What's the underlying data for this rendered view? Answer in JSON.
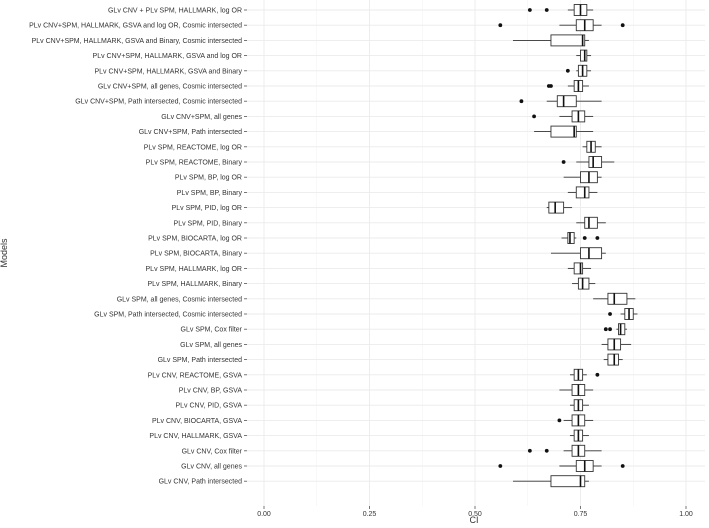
{
  "chart_data": {
    "type": "boxplot",
    "title": "",
    "xlabel": "CI",
    "ylabel": "Models",
    "xlim": [
      0.0,
      1.0
    ],
    "xticks": [
      "0.00",
      "0.25",
      "0.50",
      "0.75",
      "1.00"
    ],
    "xtick_values": [
      0.0,
      0.25,
      0.5,
      0.75,
      1.0
    ],
    "grid": true,
    "models": [
      {
        "label": "GLv CNV + PLv SPM, HALLMARK, log OR",
        "min": 0.72,
        "q1": 0.735,
        "median": 0.75,
        "q3": 0.765,
        "max": 0.78,
        "outliers": [
          0.63,
          0.67
        ]
      },
      {
        "label": "PLv CNV+SPM, HALLMARK, GSVA and log OR, Cosmic intersected",
        "min": 0.7,
        "q1": 0.74,
        "median": 0.76,
        "q3": 0.78,
        "max": 0.8,
        "outliers": [
          0.56,
          0.85
        ]
      },
      {
        "label": "PLv CNV+SPM, HALLMARK, GSVA and Binary, Cosmic intersected",
        "min": 0.59,
        "q1": 0.68,
        "median": 0.755,
        "q3": 0.76,
        "max": 0.77,
        "outliers": []
      },
      {
        "label": "PLv CNV+SPM, HALLMARK, GSVA and log OR",
        "min": 0.74,
        "q1": 0.75,
        "median": 0.76,
        "q3": 0.765,
        "max": 0.775,
        "outliers": []
      },
      {
        "label": "PLv CNV+SPM, HALLMARK, GSVA and Binary",
        "min": 0.74,
        "q1": 0.745,
        "median": 0.755,
        "q3": 0.765,
        "max": 0.775,
        "outliers": [
          0.72
        ]
      },
      {
        "label": "GLv CNV+SPM, all genes, Cosmic intersected",
        "min": 0.72,
        "q1": 0.735,
        "median": 0.745,
        "q3": 0.755,
        "max": 0.77,
        "outliers": [
          0.68,
          0.675
        ]
      },
      {
        "label": "GLv CNV+SPM, Path intersected, Cosmic intersected",
        "min": 0.67,
        "q1": 0.695,
        "median": 0.71,
        "q3": 0.74,
        "max": 0.8,
        "outliers": [
          0.61
        ]
      },
      {
        "label": "GLv CNV+SPM, all genes",
        "min": 0.7,
        "q1": 0.73,
        "median": 0.745,
        "q3": 0.76,
        "max": 0.78,
        "outliers": [
          0.64
        ]
      },
      {
        "label": "GLv CNV+SPM, Path intersected",
        "min": 0.64,
        "q1": 0.68,
        "median": 0.735,
        "q3": 0.74,
        "max": 0.78,
        "outliers": []
      },
      {
        "label": "PLv SPM, REACTOME, log OR",
        "min": 0.755,
        "q1": 0.765,
        "median": 0.775,
        "q3": 0.785,
        "max": 0.8,
        "outliers": []
      },
      {
        "label": "PLv SPM, REACTOME, Binary",
        "min": 0.74,
        "q1": 0.77,
        "median": 0.78,
        "q3": 0.8,
        "max": 0.83,
        "outliers": [
          0.71
        ]
      },
      {
        "label": "PLv SPM, BP, log OR",
        "min": 0.71,
        "q1": 0.75,
        "median": 0.77,
        "q3": 0.79,
        "max": 0.8,
        "outliers": []
      },
      {
        "label": "PLv SPM, BP, Binary",
        "min": 0.72,
        "q1": 0.74,
        "median": 0.76,
        "q3": 0.77,
        "max": 0.79,
        "outliers": []
      },
      {
        "label": "PLv SPM, PID, log OR",
        "min": 0.67,
        "q1": 0.675,
        "median": 0.69,
        "q3": 0.71,
        "max": 0.73,
        "outliers": []
      },
      {
        "label": "PLv SPM, PID, Binary",
        "min": 0.74,
        "q1": 0.76,
        "median": 0.77,
        "q3": 0.79,
        "max": 0.81,
        "outliers": []
      },
      {
        "label": "PLv SPM, BIOCARTA, log OR",
        "min": 0.705,
        "q1": 0.72,
        "median": 0.725,
        "q3": 0.735,
        "max": 0.74,
        "outliers": [
          0.76,
          0.79
        ]
      },
      {
        "label": "PLv SPM, BIOCARTA, Binary",
        "min": 0.68,
        "q1": 0.75,
        "median": 0.77,
        "q3": 0.8,
        "max": 0.81,
        "outliers": []
      },
      {
        "label": "PLv SPM, HALLMARK, log OR",
        "min": 0.72,
        "q1": 0.735,
        "median": 0.75,
        "q3": 0.755,
        "max": 0.775,
        "outliers": []
      },
      {
        "label": "PLv SPM, HALLMARK, Binary",
        "min": 0.73,
        "q1": 0.745,
        "median": 0.755,
        "q3": 0.77,
        "max": 0.785,
        "outliers": []
      },
      {
        "label": "GLv SPM, all genes, Cosmic intersected",
        "min": 0.78,
        "q1": 0.815,
        "median": 0.83,
        "q3": 0.86,
        "max": 0.88,
        "outliers": []
      },
      {
        "label": "GLv SPM, Path intersected, Cosmic intersected",
        "min": 0.845,
        "q1": 0.855,
        "median": 0.865,
        "q3": 0.875,
        "max": 0.885,
        "outliers": [
          0.82
        ]
      },
      {
        "label": "GLv SPM, Cox filter",
        "min": 0.835,
        "q1": 0.84,
        "median": 0.845,
        "q3": 0.855,
        "max": 0.86,
        "outliers": [
          0.81,
          0.82
        ]
      },
      {
        "label": "GLv SPM, all genes",
        "min": 0.8,
        "q1": 0.815,
        "median": 0.83,
        "q3": 0.845,
        "max": 0.87,
        "outliers": []
      },
      {
        "label": "GLv SPM, Path intersected",
        "min": 0.805,
        "q1": 0.815,
        "median": 0.83,
        "q3": 0.84,
        "max": 0.85,
        "outliers": []
      },
      {
        "label": "PLv CNV, REACTOME, GSVA",
        "min": 0.725,
        "q1": 0.735,
        "median": 0.745,
        "q3": 0.755,
        "max": 0.765,
        "outliers": [
          0.79
        ]
      },
      {
        "label": "PLv CNV, BP, GSVA",
        "min": 0.7,
        "q1": 0.73,
        "median": 0.745,
        "q3": 0.76,
        "max": 0.78,
        "outliers": []
      },
      {
        "label": "PLv CNV, PID, GSVA",
        "min": 0.725,
        "q1": 0.735,
        "median": 0.745,
        "q3": 0.755,
        "max": 0.77,
        "outliers": []
      },
      {
        "label": "PLv CNV, BIOCARTA, GSVA",
        "min": 0.71,
        "q1": 0.73,
        "median": 0.745,
        "q3": 0.76,
        "max": 0.78,
        "outliers": [
          0.7
        ]
      },
      {
        "label": "PLv CNV, HALLMARK, GSVA",
        "min": 0.725,
        "q1": 0.735,
        "median": 0.745,
        "q3": 0.755,
        "max": 0.77,
        "outliers": []
      },
      {
        "label": "GLv CNV, Cox filter",
        "min": 0.71,
        "q1": 0.73,
        "median": 0.745,
        "q3": 0.76,
        "max": 0.8,
        "outliers": [
          0.63,
          0.67
        ]
      },
      {
        "label": "GLv CNV, all genes",
        "min": 0.7,
        "q1": 0.74,
        "median": 0.76,
        "q3": 0.78,
        "max": 0.8,
        "outliers": [
          0.56,
          0.85
        ]
      },
      {
        "label": "GLv CNV, Path intersected",
        "min": 0.59,
        "q1": 0.68,
        "median": 0.75,
        "q3": 0.76,
        "max": 0.77,
        "outliers": []
      }
    ]
  }
}
